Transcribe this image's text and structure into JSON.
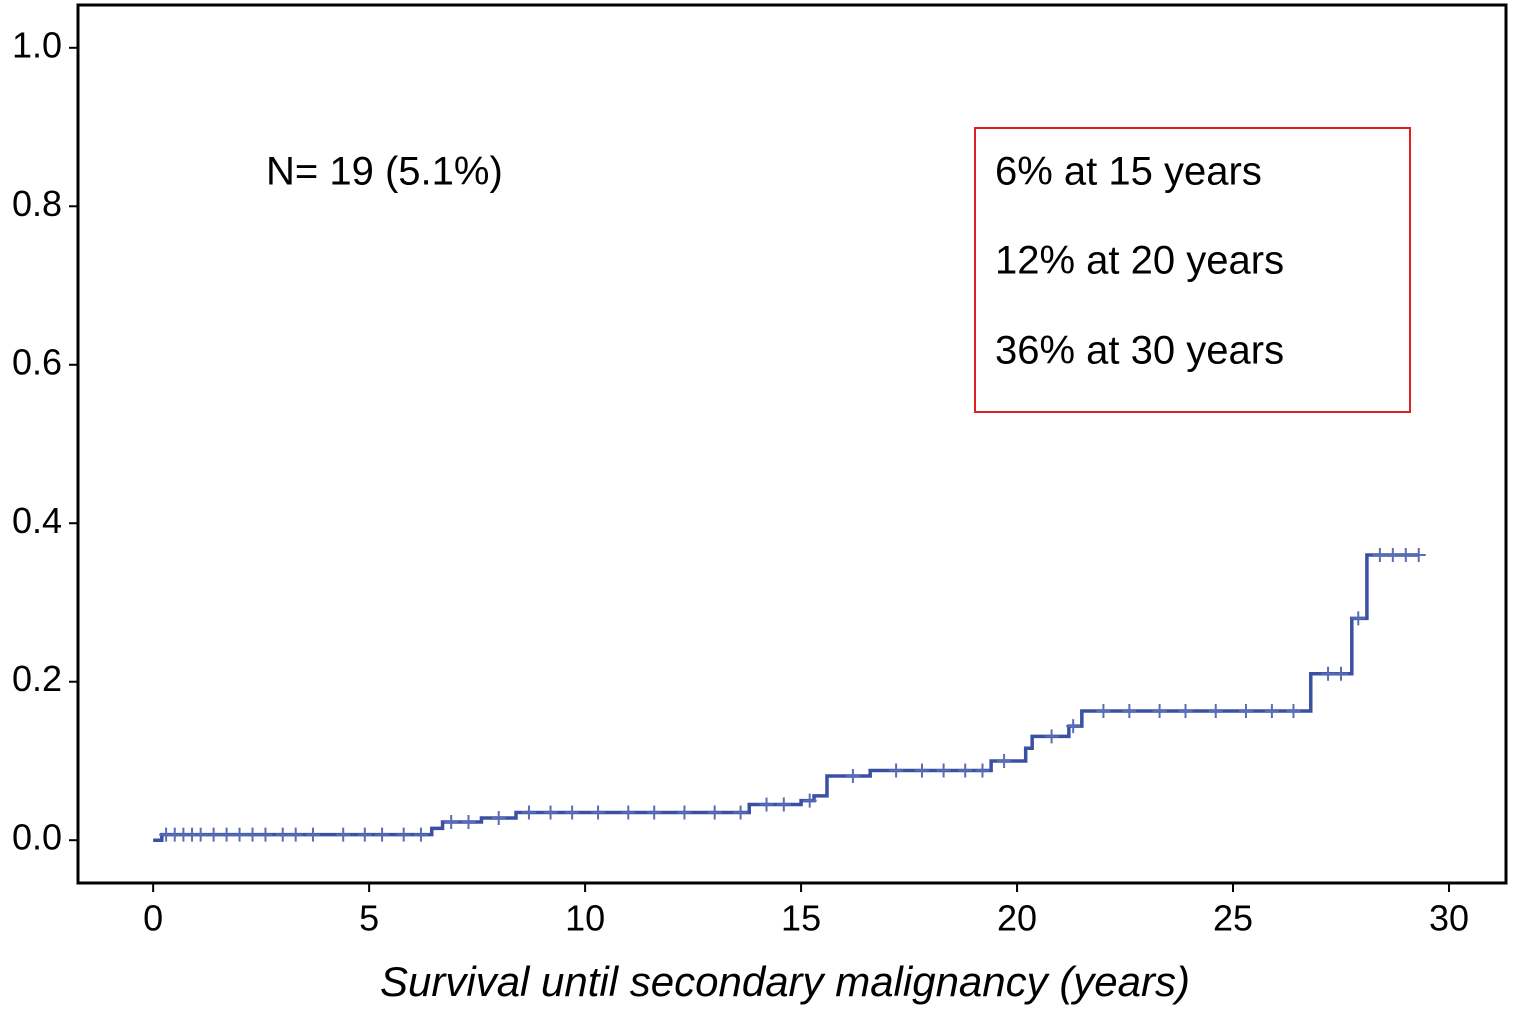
{
  "chart_data": {
    "type": "step",
    "x_label": "Survival until secondary malignancy (years)",
    "annotations": [
      "N= 19 (5.1%)",
      "6% at 15 years",
      "12% at 20 years",
      "36% at 30 years"
    ],
    "xlim": [
      -1.74,
      31.32
    ],
    "ylim": [
      -0.054,
      1.054
    ],
    "xticks": [
      0,
      5,
      10,
      15,
      20,
      25,
      30
    ],
    "yticks": [
      {
        "value": 0,
        "label": "0.0"
      },
      {
        "value": 0.2,
        "label": "0.2"
      },
      {
        "value": 0.4,
        "label": "0.4"
      },
      {
        "value": 0.6,
        "label": "0.6"
      },
      {
        "value": 0.8,
        "label": "0.8"
      },
      {
        "value": 1,
        "label": "1.0"
      }
    ],
    "grid": false,
    "series": [
      {
        "color": "#3a50a2",
        "x": [
          0,
          0.2,
          6.45,
          6.7,
          7.6,
          8.4,
          13.8,
          15.0,
          15.3,
          15.6,
          16.6,
          19.4,
          20.2,
          20.35,
          21.2,
          21.5,
          26.8,
          27.75,
          28.1,
          29.3
        ],
        "values": [
          0,
          0.007,
          0.015,
          0.023,
          0.028,
          0.035,
          0.045,
          0.05,
          0.056,
          0.081,
          0.088,
          0.1,
          0.116,
          0.131,
          0.144,
          0.163,
          0.21,
          0.28,
          0.36,
          0.36
        ]
      },
      {
        "color": "#5a6cb5",
        "x": [
          0.3,
          0.5,
          0.7,
          0.9,
          1.1,
          1.4,
          1.7,
          2.0,
          2.3,
          2.6,
          3.0,
          3.3,
          3.7,
          4.4,
          4.9,
          5.3,
          5.8,
          6.2,
          6.9,
          7.3,
          8.0,
          8.7,
          9.2,
          9.7,
          10.3,
          11.0,
          11.6,
          12.3,
          13.0,
          13.6,
          14.2,
          14.6,
          15.2,
          16.2,
          17.2,
          17.8,
          18.3,
          18.8,
          19.2,
          19.7,
          20.8,
          21.3,
          22.0,
          22.6,
          23.3,
          23.9,
          24.6,
          25.3,
          25.9,
          26.4,
          27.2,
          27.5,
          27.9,
          28.4,
          28.7,
          29.0,
          29.3
        ],
        "values": [
          0.007,
          0.007,
          0.007,
          0.007,
          0.007,
          0.007,
          0.007,
          0.007,
          0.007,
          0.007,
          0.007,
          0.007,
          0.007,
          0.007,
          0.007,
          0.007,
          0.007,
          0.007,
          0.023,
          0.023,
          0.028,
          0.035,
          0.035,
          0.035,
          0.035,
          0.035,
          0.035,
          0.035,
          0.035,
          0.035,
          0.045,
          0.045,
          0.05,
          0.081,
          0.088,
          0.088,
          0.088,
          0.088,
          0.088,
          0.1,
          0.131,
          0.144,
          0.163,
          0.163,
          0.163,
          0.163,
          0.163,
          0.163,
          0.163,
          0.163,
          0.21,
          0.21,
          0.28,
          0.36,
          0.36,
          0.36,
          0.36
        ]
      }
    ]
  }
}
